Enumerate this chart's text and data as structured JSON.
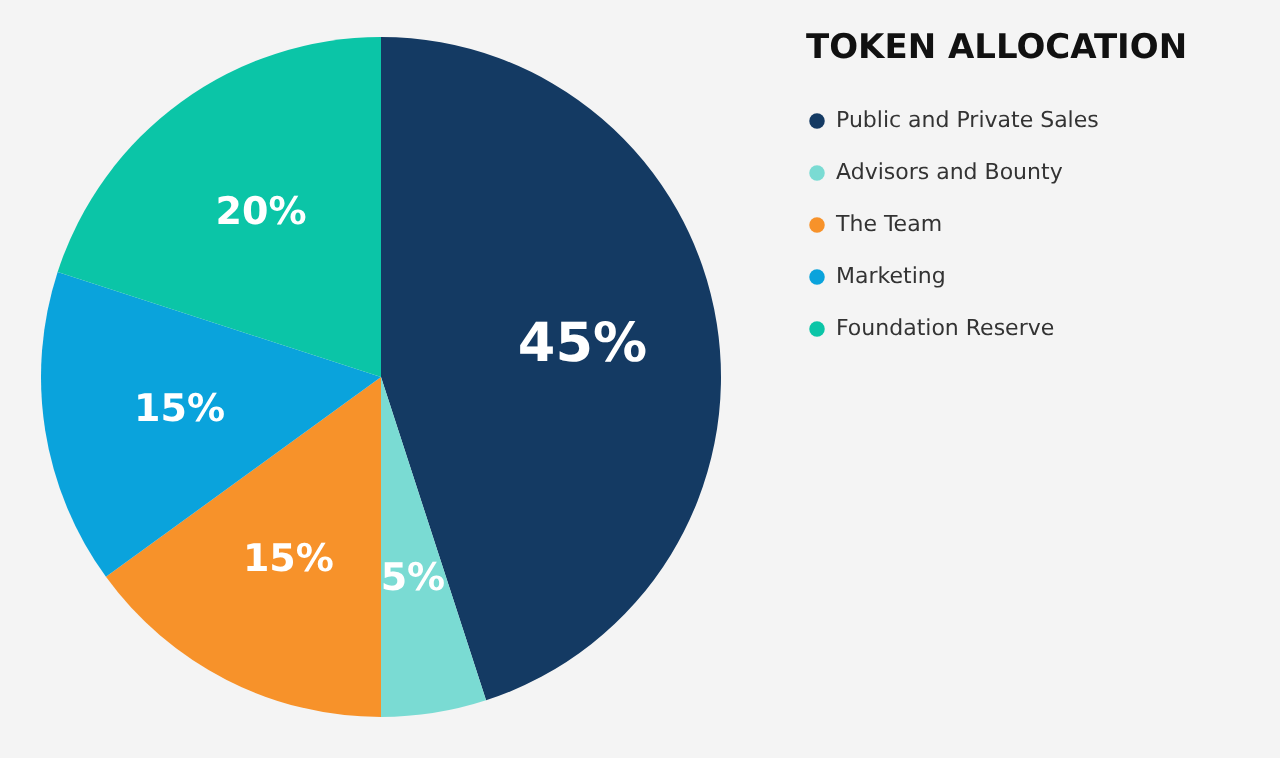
{
  "chart_data": {
    "type": "pie",
    "legend_title": "TOKEN ALLOCATION",
    "categories": [
      "Public and Private Sales",
      "Advisors and Bounty",
      "The Team",
      "Marketing",
      "Foundation Reserve"
    ],
    "values": [
      45,
      5,
      15,
      15,
      20
    ],
    "colors": [
      "#143a63",
      "#7adbd3",
      "#f7922a",
      "#0aa3dc",
      "#0bc5a7"
    ],
    "value_labels": [
      "45%",
      "5%",
      "15%",
      "15%",
      "20%"
    ],
    "legend": "right"
  }
}
